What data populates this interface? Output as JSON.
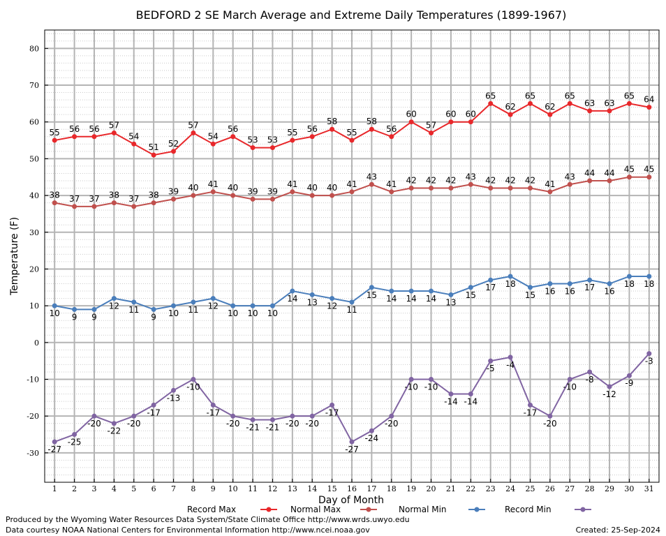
{
  "chart_data": {
    "type": "line",
    "title": "BEDFORD 2 SE March Average and Extreme Daily Temperatures (1899-1967)",
    "xlabel": "Day of Month",
    "ylabel": "Temperature (F)",
    "x": [
      1,
      2,
      3,
      4,
      5,
      6,
      7,
      8,
      9,
      10,
      11,
      12,
      13,
      14,
      15,
      16,
      17,
      18,
      19,
      20,
      21,
      22,
      23,
      24,
      25,
      26,
      27,
      28,
      29,
      30,
      31
    ],
    "xlim": [
      0.5,
      31.5
    ],
    "ylim": [
      -38,
      85
    ],
    "yticks": [
      -30,
      -20,
      -10,
      0,
      10,
      20,
      30,
      40,
      50,
      60,
      70,
      80
    ],
    "grid": true,
    "legend_placement": "bottom",
    "series": [
      {
        "name": "Record Max",
        "color": "#e8282b",
        "values": [
          55,
          56,
          56,
          57,
          54,
          51,
          52,
          57,
          54,
          56,
          53,
          53,
          55,
          56,
          58,
          55,
          58,
          56,
          60,
          57,
          60,
          60,
          65,
          62,
          65,
          62,
          65,
          63,
          63,
          65,
          64
        ]
      },
      {
        "name": "Normal Max",
        "color": "#c0504d",
        "values": [
          38,
          37,
          37,
          38,
          37,
          38,
          39,
          40,
          41,
          40,
          39,
          39,
          41,
          40,
          40,
          41,
          43,
          41,
          42,
          42,
          42,
          43,
          42,
          42,
          42,
          41,
          43,
          44,
          44,
          45,
          45
        ]
      },
      {
        "name": "Normal Min",
        "color": "#4a7ebb",
        "values": [
          10,
          9,
          9,
          12,
          11,
          9,
          10,
          11,
          12,
          10,
          10,
          10,
          14,
          13,
          12,
          11,
          15,
          14,
          14,
          14,
          13,
          15,
          17,
          18,
          15,
          16,
          16,
          17,
          16,
          18,
          18
        ]
      },
      {
        "name": "Record Min",
        "color": "#8064a2",
        "values": [
          -27,
          -25,
          -20,
          -22,
          -20,
          -17,
          -13,
          -10,
          -17,
          -20,
          -21,
          -21,
          -20,
          -20,
          -17,
          -27,
          -24,
          -20,
          -10,
          -10,
          -14,
          -14,
          -5,
          -4,
          -17,
          -20,
          -10,
          -8,
          -12,
          -9,
          -3
        ]
      }
    ]
  },
  "footer": {
    "produced_by": "Produced by the Wyoming Water Resources Data System/State Climate Office http://www.wrds.uwyo.edu",
    "courtesy": "Data courtesy NOAA National Centers for Environmental Information http://www.ncei.noaa.gov",
    "created": "Created:  25-Sep-2024"
  }
}
